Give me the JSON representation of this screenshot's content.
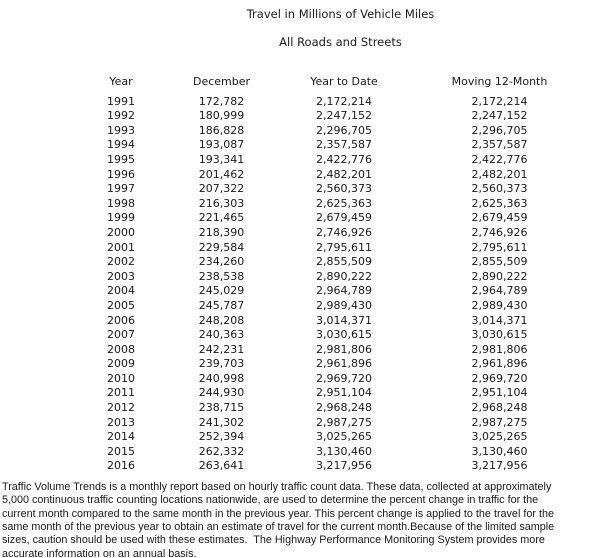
{
  "page": {
    "title": "Travel in Millions of Vehicle Miles",
    "subtitle": "All Roads and Streets"
  },
  "table": {
    "headers": [
      "Year",
      "December",
      "Year to Date",
      "Moving 12-Month"
    ],
    "rows": [
      [
        "1991",
        "172,782",
        "2,172,214",
        "2,172,214"
      ],
      [
        "1992",
        "180,999",
        "2,247,152",
        "2,247,152"
      ],
      [
        "1993",
        "186,828",
        "2,296,705",
        "2,296,705"
      ],
      [
        "1994",
        "193,087",
        "2,357,587",
        "2,357,587"
      ],
      [
        "1995",
        "193,341",
        "2,422,776",
        "2,422,776"
      ],
      [
        "1996",
        "201,462",
        "2,482,201",
        "2,482,201"
      ],
      [
        "1997",
        "207,322",
        "2,560,373",
        "2,560,373"
      ],
      [
        "1998",
        "216,303",
        "2,625,363",
        "2,625,363"
      ],
      [
        "1999",
        "221,465",
        "2,679,459",
        "2,679,459"
      ],
      [
        "2000",
        "218,390",
        "2,746,926",
        "2,746,926"
      ],
      [
        "2001",
        "229,584",
        "2,795,611",
        "2,795,611"
      ],
      [
        "2002",
        "234,260",
        "2,855,509",
        "2,855,509"
      ],
      [
        "2003",
        "238,538",
        "2,890,222",
        "2,890,222"
      ],
      [
        "2004",
        "245,029",
        "2,964,789",
        "2,964,789"
      ],
      [
        "2005",
        "245,787",
        "2,989,430",
        "2,989,430"
      ],
      [
        "2006",
        "248,208",
        "3,014,371",
        "3,014,371"
      ],
      [
        "2007",
        "240,363",
        "3,030,615",
        "3,030,615"
      ],
      [
        "2008",
        "242,231",
        "2,981,806",
        "2,981,806"
      ],
      [
        "2009",
        "239,703",
        "2,961,896",
        "2,961,896"
      ],
      [
        "2010",
        "240,998",
        "2,969,720",
        "2,969,720"
      ],
      [
        "2011",
        "244,930",
        "2,951,104",
        "2,951,104"
      ],
      [
        "2012",
        "238,715",
        "2,968,248",
        "2,968,248"
      ],
      [
        "2013",
        "241,302",
        "2,987,275",
        "2,987,275"
      ],
      [
        "2014",
        "252,394",
        "3,025,265",
        "3,025,265"
      ],
      [
        "2015",
        "262,332",
        "3,130,460",
        "3,130,460"
      ],
      [
        "2016",
        "263,641",
        "3,217,956",
        "3,217,956"
      ]
    ]
  },
  "footer": {
    "lines": [
      "Traffic Volume Trends is a monthly report based on hourly traffic count data. These data, collected at approximately",
      "5,000 continuous traffic counting locations nationwide, are used to determine the percent change in traffic for the",
      "current month compared to the same month in the previous year. This percent change is applied to the travel for the",
      "same month of the previous year to obtain an estimate of travel for the current month.Because of the limited sample",
      "sizes, caution should be used with these estimates.  The Highway Performance Monitoring System provides more",
      "accurate information on an annual basis."
    ]
  }
}
